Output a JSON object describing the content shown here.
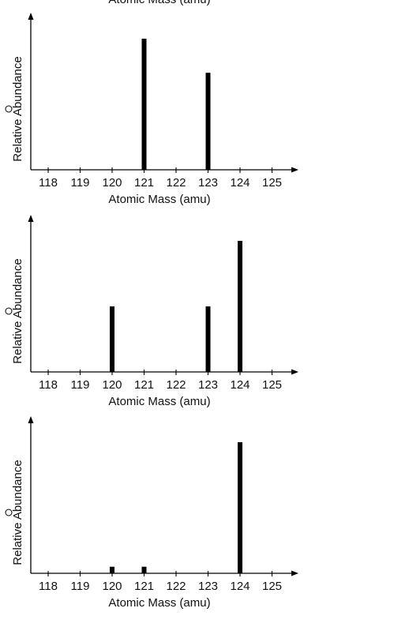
{
  "colors": {
    "bar": "#000000",
    "axis": "#000000",
    "text": "#111111",
    "background": "#ffffff"
  },
  "top_partial_label": "Atomic Mass (amu)",
  "chart_data": [
    {
      "type": "bar",
      "panel_marker": "",
      "xlabel": "Atomic Mass (amu)",
      "ylabel": "Relative Abundance",
      "x_ticks": [
        118,
        119,
        120,
        121,
        122,
        123,
        124,
        125
      ],
      "xlim": [
        117.5,
        125.8
      ],
      "ylim": [
        0,
        1.0
      ],
      "grid": false,
      "legend": "none",
      "x": [
        121,
        123
      ],
      "values": [
        1.0,
        0.74
      ]
    },
    {
      "type": "bar",
      "panel_marker": "",
      "xlabel": "Atomic Mass (amu)",
      "ylabel": "Relative Abundance",
      "x_ticks": [
        118,
        119,
        120,
        121,
        122,
        123,
        124,
        125
      ],
      "xlim": [
        117.5,
        125.8
      ],
      "ylim": [
        0,
        1.0
      ],
      "grid": false,
      "legend": "none",
      "x": [
        120,
        123,
        124
      ],
      "values": [
        0.5,
        0.5,
        1.0
      ]
    },
    {
      "type": "bar",
      "panel_marker": "",
      "xlabel": "Atomic Mass (amu)",
      "ylabel": "Relative Abundance",
      "x_ticks": [
        118,
        119,
        120,
        121,
        122,
        123,
        124,
        125
      ],
      "xlim": [
        117.5,
        125.8
      ],
      "ylim": [
        0,
        1.0
      ],
      "grid": false,
      "legend": "none",
      "x": [
        120,
        121,
        124
      ],
      "values": [
        0.05,
        0.05,
        1.0
      ]
    }
  ]
}
